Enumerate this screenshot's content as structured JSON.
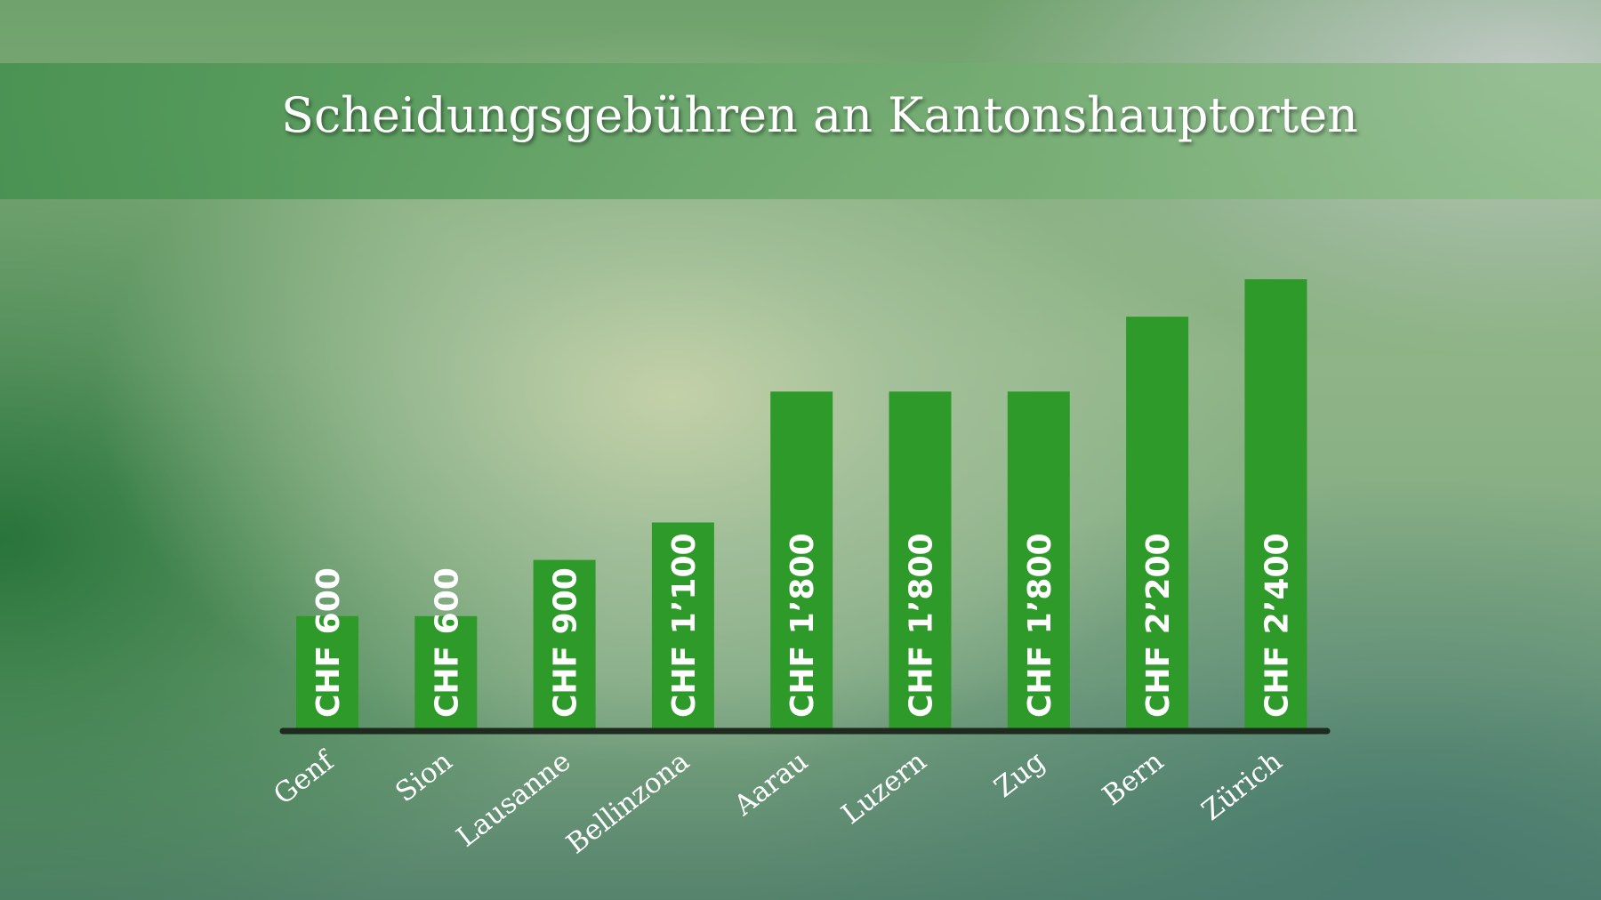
{
  "chart_data": {
    "type": "bar",
    "title": "Scheidungsgebühren an Kantonshauptorten",
    "categories": [
      "Genf",
      "Sion",
      "Lausanne",
      "Bellinzona",
      "Aarau",
      "Luzern",
      "Zug",
      "Bern",
      "Zürich"
    ],
    "values": [
      600,
      600,
      900,
      1100,
      1800,
      1800,
      1800,
      2200,
      2400
    ],
    "data_labels": [
      "CHF 600",
      "CHF 600",
      "CHF 900",
      "CHF 1’100",
      "CHF 1’800",
      "CHF 1’800",
      "CHF 1’800",
      "CHF 2’200",
      "CHF 2’400"
    ],
    "ylim": [
      0,
      2400
    ],
    "grid": false,
    "colors": {
      "bar": "#2e9a2a",
      "axis": "#1e2a1e"
    }
  }
}
